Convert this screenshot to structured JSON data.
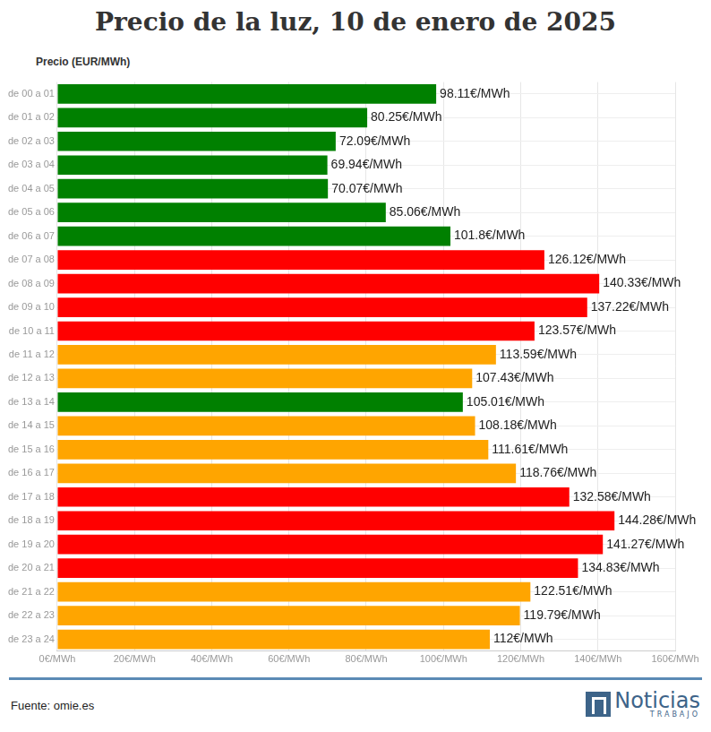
{
  "chart_data": {
    "type": "bar",
    "orientation": "horizontal",
    "title": "Precio de la luz, 10 de enero de 2025",
    "x_label": "Precio (EUR/MWh)",
    "source": "Fuente: omie.es",
    "brand": {
      "name": "Noticias",
      "tagline": "TRABAJO"
    },
    "categories": [
      "de 00 a 01",
      "de 01 a 02",
      "de 02 a 03",
      "de 03 a 04",
      "de 04 a 05",
      "de 05 a 06",
      "de 06 a 07",
      "de 07 a 08",
      "de 08 a 09",
      "de 09 a 10",
      "de 10 a 11",
      "de 11 a 12",
      "de 12 a 13",
      "de 13 a 14",
      "de 14 a 15",
      "de 15 a 16",
      "de 16 a 17",
      "de 17 a 18",
      "de 18 a 19",
      "de 19 a 20",
      "de 20 a 21",
      "de 21 a 22",
      "de 22 a 23",
      "de 23 a 24"
    ],
    "values": [
      98.11,
      80.25,
      72.09,
      69.94,
      70.07,
      85.06,
      101.8,
      126.12,
      140.33,
      137.22,
      123.57,
      113.59,
      107.43,
      105.01,
      108.18,
      111.61,
      118.76,
      132.58,
      144.28,
      141.27,
      134.83,
      122.51,
      119.79,
      112
    ],
    "value_labels": [
      "98.11€/MWh",
      "80.25€/MWh",
      "72.09€/MWh",
      "69.94€/MWh",
      "70.07€/MWh",
      "85.06€/MWh",
      "101.8€/MWh",
      "126.12€/MWh",
      "140.33€/MWh",
      "137.22€/MWh",
      "123.57€/MWh",
      "113.59€/MWh",
      "107.43€/MWh",
      "105.01€/MWh",
      "108.18€/MWh",
      "111.61€/MWh",
      "118.76€/MWh",
      "132.58€/MWh",
      "144.28€/MWh",
      "141.27€/MWh",
      "134.83€/MWh",
      "122.51€/MWh",
      "119.79€/MWh",
      "112€/MWh"
    ],
    "colors": [
      "#008000",
      "#008000",
      "#008000",
      "#008000",
      "#008000",
      "#008000",
      "#008000",
      "#ff0000",
      "#ff0000",
      "#ff0000",
      "#ff0000",
      "#ffa500",
      "#ffa500",
      "#008000",
      "#ffa500",
      "#ffa500",
      "#ffa500",
      "#ff0000",
      "#ff0000",
      "#ff0000",
      "#ff0000",
      "#ffa500",
      "#ffa500",
      "#ffa500"
    ],
    "xlim": [
      0,
      160
    ],
    "xticks": [
      {
        "value": 0,
        "label": "0€/MWh"
      },
      {
        "value": 20,
        "label": "20€/MWh"
      },
      {
        "value": 40,
        "label": "40€/MWh"
      },
      {
        "value": 60,
        "label": "60€/MWh"
      },
      {
        "value": 80,
        "label": "80€/MWh"
      },
      {
        "value": 100,
        "label": "100€/MWh"
      },
      {
        "value": 120,
        "label": "120€/MWh"
      },
      {
        "value": 140,
        "label": "140€/MWh"
      },
      {
        "value": 160,
        "label": "160€/MWh"
      }
    ],
    "grid": true,
    "data_labels": true
  }
}
